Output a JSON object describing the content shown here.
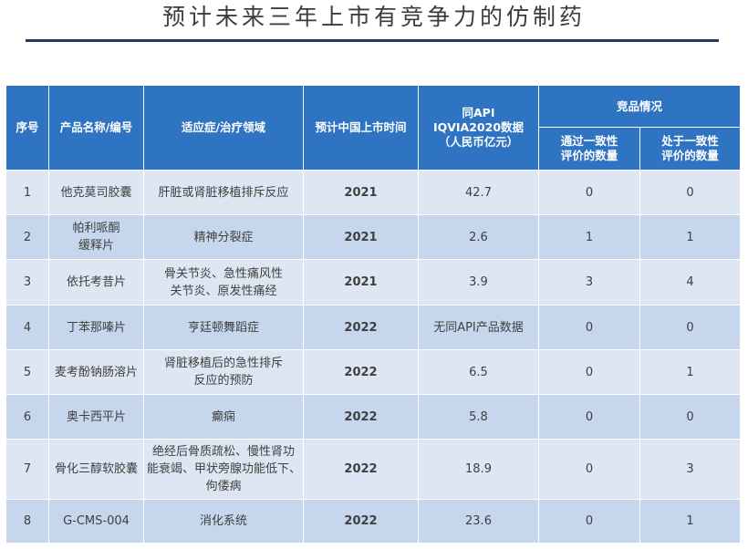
{
  "page_title": "预计未来三年上市有竞争力的仿制药",
  "table": {
    "headers": {
      "index": "序号",
      "product": "产品名称/编号",
      "indication": "适应症/治疗领域",
      "launch": "预计中国上市时间",
      "sales_line1": "同API",
      "sales_line2": "IQVIA2020数据",
      "sales_line3": "（人民币亿元）",
      "competition": "竞品情况",
      "passed_line1": "通过一致性",
      "passed_line2": "评价的数量",
      "in_progress_line1": "处于一致性",
      "in_progress_line2": "评价的数量"
    },
    "rows": [
      {
        "index": "1",
        "product": [
          "他克莫司胶囊"
        ],
        "indication": [
          "肝脏或肾脏移植排斥反应"
        ],
        "launch": "2021",
        "sales": "42.7",
        "passed": "0",
        "in_progress": "0"
      },
      {
        "index": "2",
        "product": [
          "帕利哌酮",
          "缓释片"
        ],
        "indication": [
          "精神分裂症"
        ],
        "launch": "2021",
        "sales": "2.6",
        "passed": "1",
        "in_progress": "1"
      },
      {
        "index": "3",
        "product": [
          "依托考昔片"
        ],
        "indication": [
          "骨关节炎、急性痛风性",
          "关节炎、原发性痛经"
        ],
        "launch": "2021",
        "sales": "3.9",
        "passed": "3",
        "in_progress": "4"
      },
      {
        "index": "4",
        "product": [
          "丁苯那嗪片"
        ],
        "indication": [
          "亨廷顿舞蹈症"
        ],
        "launch": "2022",
        "sales": "无同API产品数据",
        "passed": "0",
        "in_progress": "0"
      },
      {
        "index": "5",
        "product": [
          "麦考酚钠肠溶片"
        ],
        "indication": [
          "肾脏移植后的急性排斥",
          "反应的预防"
        ],
        "launch": "2022",
        "sales": "6.5",
        "passed": "0",
        "in_progress": "1"
      },
      {
        "index": "6",
        "product": [
          "奥卡西平片"
        ],
        "indication": [
          "癫痫"
        ],
        "launch": "2022",
        "sales": "5.8",
        "passed": "0",
        "in_progress": "0"
      },
      {
        "index": "7",
        "product": [
          "骨化三醇软胶囊"
        ],
        "indication": [
          "绝经后骨质疏松、慢性肾功",
          "能衰竭、甲状旁腺功能低下、",
          "佝偻病"
        ],
        "launch": "2022",
        "sales": "18.9",
        "passed": "0",
        "in_progress": "3"
      },
      {
        "index": "8",
        "product": [
          "G-CMS-004"
        ],
        "indication": [
          "消化系统"
        ],
        "launch": "2022",
        "sales": "23.6",
        "passed": "0",
        "in_progress": "1"
      }
    ]
  }
}
